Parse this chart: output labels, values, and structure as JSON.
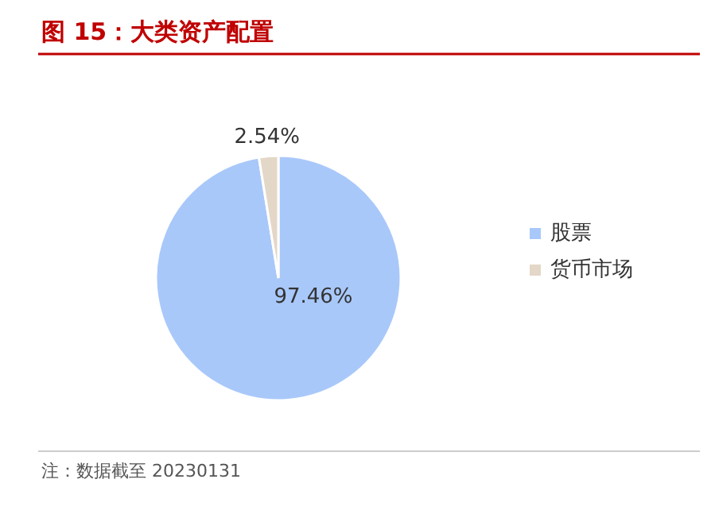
{
  "chart_data": {
    "type": "pie",
    "title": "图 15：大类资产配置",
    "categories": [
      "股票",
      "货币市场"
    ],
    "values": [
      97.46,
      2.54
    ],
    "colors": [
      "#a9c8fa",
      "#e3d7c7"
    ],
    "value_labels": [
      "97.46%",
      "2.54%"
    ],
    "legend": "right",
    "annotations": [
      "注：数据截至 20230131"
    ]
  }
}
